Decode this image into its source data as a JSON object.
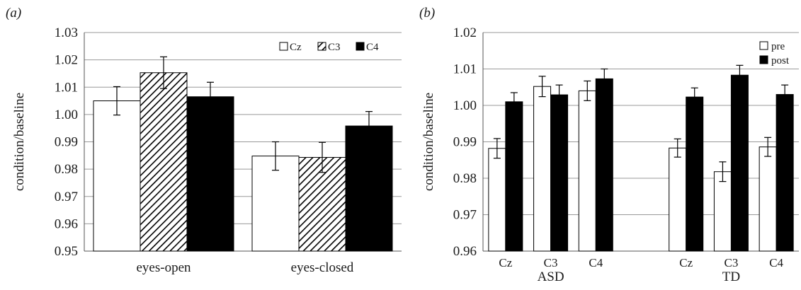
{
  "chart_data": [
    {
      "panel_label": "(a)",
      "type": "bar",
      "ylabel": "condition/baseline",
      "ylim": [
        0.95,
        1.03
      ],
      "yticks": [
        "0.95",
        "0.96",
        "0.97",
        "0.98",
        "0.99",
        "1.00",
        "1.01",
        "1.02",
        "1.03"
      ],
      "categories": [
        "eyes-open",
        "eyes-closed"
      ],
      "grid": true,
      "legend_position": "top-right",
      "series": [
        {
          "name": "Cz",
          "fill": "white",
          "values": [
            1.005,
            0.9848
          ],
          "errors": [
            0.0052,
            0.0052
          ]
        },
        {
          "name": "C3",
          "fill": "hatch",
          "values": [
            1.0153,
            0.9843
          ],
          "errors": [
            0.0058,
            0.0055
          ]
        },
        {
          "name": "C4",
          "fill": "black",
          "values": [
            1.0065,
            0.9958
          ],
          "errors": [
            0.0053,
            0.0053
          ]
        }
      ]
    },
    {
      "panel_label": "(b)",
      "type": "bar",
      "ylabel": "condition/baseline",
      "ylim": [
        0.96,
        1.02
      ],
      "yticks": [
        "0.96",
        "0.97",
        "0.98",
        "0.99",
        "1.00",
        "1.01",
        "1.02"
      ],
      "categories": [
        "Cz",
        "C3",
        "C4",
        "Cz",
        "C3",
        "C4"
      ],
      "groups": [
        "ASD",
        "TD"
      ],
      "grid": true,
      "legend_position": "top-right",
      "series": [
        {
          "name": "pre",
          "fill": "white",
          "values": [
            0.9882,
            1.0052,
            1.004,
            0.9883,
            0.9818,
            0.9886
          ],
          "errors": [
            0.0027,
            0.0028,
            0.0027,
            0.0025,
            0.0027,
            0.0026
          ]
        },
        {
          "name": "post",
          "fill": "black",
          "values": [
            1.001,
            1.0029,
            1.0073,
            1.0023,
            1.0083,
            1.003
          ],
          "errors": [
            0.0025,
            0.0027,
            0.0027,
            0.0025,
            0.0027,
            0.0026
          ]
        }
      ]
    }
  ]
}
